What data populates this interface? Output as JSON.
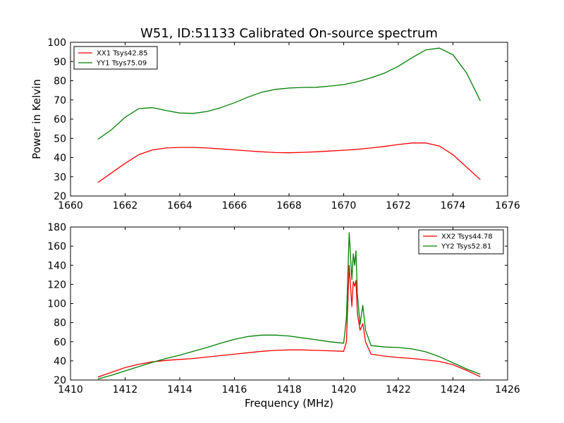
{
  "figure": {
    "title": "W51, ID:51133 Calibrated On-source spectrum"
  },
  "chart_data": [
    {
      "type": "line",
      "title": "W51, ID:51133 Calibrated On-source spectrum",
      "xlabel": "",
      "ylabel": "Power in Kelvin",
      "xlim": [
        1660,
        1676
      ],
      "ylim": [
        20,
        100
      ],
      "xticks": [
        1660,
        1662,
        1664,
        1666,
        1668,
        1670,
        1672,
        1674,
        1676
      ],
      "yticks": [
        20,
        30,
        40,
        50,
        60,
        70,
        80,
        90,
        100
      ],
      "grid": false,
      "legend_position": "top-left",
      "series": [
        {
          "name": "XX1 Tsys42.85",
          "color": "#ff0000",
          "x": [
            1661.0,
            1661.5,
            1662.0,
            1662.5,
            1663.0,
            1663.5,
            1664.0,
            1664.5,
            1665.0,
            1665.5,
            1666.0,
            1666.5,
            1667.0,
            1667.5,
            1668.0,
            1668.5,
            1669.0,
            1669.5,
            1670.0,
            1670.5,
            1671.0,
            1671.5,
            1672.0,
            1672.5,
            1673.0,
            1673.5,
            1674.0,
            1674.5,
            1675.0
          ],
          "y": [
            27,
            32,
            37,
            41.5,
            44,
            45,
            45.3,
            45.3,
            45,
            44.5,
            44,
            43.5,
            43,
            42.6,
            42.5,
            42.7,
            43,
            43.4,
            43.8,
            44.3,
            45,
            45.8,
            46.8,
            47.6,
            47.6,
            46,
            41.5,
            35,
            28.5
          ]
        },
        {
          "name": "YY1 Tsys75.09",
          "color": "#008000",
          "x": [
            1661.0,
            1661.5,
            1662.0,
            1662.5,
            1663.0,
            1663.5,
            1664.0,
            1664.5,
            1665.0,
            1665.5,
            1666.0,
            1666.5,
            1667.0,
            1667.5,
            1668.0,
            1668.5,
            1669.0,
            1669.5,
            1670.0,
            1670.5,
            1671.0,
            1671.5,
            1672.0,
            1672.5,
            1673.0,
            1673.5,
            1674.0,
            1674.5,
            1675.0
          ],
          "y": [
            49.5,
            54.5,
            61,
            65.5,
            66,
            64.5,
            63.2,
            63,
            64,
            66,
            68.5,
            71.5,
            74,
            75.5,
            76.2,
            76.5,
            76.6,
            77.2,
            78,
            79.5,
            81.5,
            84,
            87.5,
            92,
            96,
            97,
            93.5,
            84,
            69.5
          ]
        }
      ]
    },
    {
      "type": "line",
      "title": "",
      "xlabel": "Frequency (MHz)",
      "ylabel": "",
      "xlim": [
        1410,
        1426
      ],
      "ylim": [
        20,
        180
      ],
      "xticks": [
        1410,
        1412,
        1414,
        1416,
        1418,
        1420,
        1422,
        1424,
        1426
      ],
      "yticks": [
        20,
        40,
        60,
        80,
        100,
        120,
        140,
        160,
        180
      ],
      "grid": false,
      "legend_position": "top-right",
      "series": [
        {
          "name": "XX2 Tsys44.78",
          "color": "#ff0000",
          "x": [
            1411.0,
            1411.5,
            1412.0,
            1412.5,
            1413.0,
            1413.5,
            1414.0,
            1414.5,
            1415.0,
            1415.5,
            1416.0,
            1416.5,
            1417.0,
            1417.5,
            1418.0,
            1418.5,
            1419.0,
            1419.5,
            1420.0,
            1420.1,
            1420.2,
            1420.3,
            1420.35,
            1420.4,
            1420.45,
            1420.5,
            1420.6,
            1420.7,
            1420.8,
            1421.0,
            1421.5,
            1422.0,
            1422.5,
            1423.0,
            1423.5,
            1424.0,
            1424.5,
            1425.0
          ],
          "y": [
            23,
            28,
            33,
            36.5,
            39,
            40.5,
            41.5,
            42.5,
            44,
            45.5,
            47,
            48.5,
            50,
            51,
            51.5,
            51.5,
            51,
            50.5,
            50,
            60,
            140,
            97,
            123,
            118,
            124,
            90,
            72,
            79,
            60,
            47,
            45,
            43.5,
            42.5,
            41,
            39.5,
            36,
            30,
            23.5
          ]
        },
        {
          "name": "YY2 Tsys52.81",
          "color": "#008000",
          "x": [
            1411.0,
            1411.5,
            1412.0,
            1412.5,
            1413.0,
            1413.5,
            1414.0,
            1414.5,
            1415.0,
            1415.5,
            1416.0,
            1416.5,
            1417.0,
            1417.5,
            1418.0,
            1418.5,
            1419.0,
            1419.5,
            1420.0,
            1420.1,
            1420.2,
            1420.3,
            1420.35,
            1420.4,
            1420.45,
            1420.5,
            1420.6,
            1420.7,
            1420.8,
            1421.0,
            1421.5,
            1422.0,
            1422.5,
            1423.0,
            1423.5,
            1424.0,
            1424.5,
            1425.0
          ],
          "y": [
            21,
            25,
            29.5,
            34,
            38.5,
            42.5,
            46,
            50,
            54,
            58.5,
            62.5,
            65.5,
            67,
            67,
            66,
            64,
            62,
            60,
            58.5,
            85,
            174,
            125,
            152,
            140,
            155,
            110,
            78,
            98,
            72,
            56,
            54.5,
            54,
            52.5,
            49.5,
            44.5,
            38,
            31.5,
            26
          ]
        }
      ]
    }
  ]
}
